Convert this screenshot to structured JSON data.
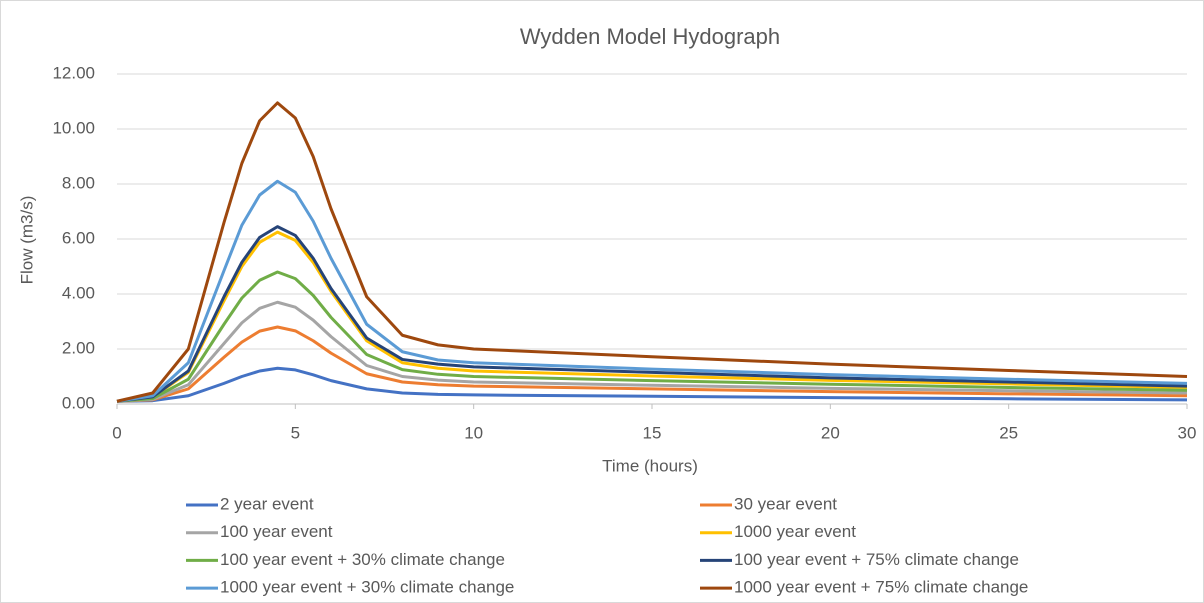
{
  "chart_data": {
    "type": "line",
    "title": "Wydden Model Hydograph",
    "x_label": "Time (hours)",
    "y_label": "Flow (m3/s)",
    "x": [
      0,
      1,
      2,
      3,
      3.5,
      4,
      4.5,
      5,
      5.5,
      6,
      7,
      8,
      9,
      10,
      15,
      20,
      25,
      30
    ],
    "series": [
      {
        "name": "2 year event",
        "color": "#4472c4",
        "values": [
          0.1,
          0.12,
          0.3,
          0.75,
          1.0,
          1.2,
          1.3,
          1.24,
          1.06,
          0.85,
          0.55,
          0.4,
          0.35,
          0.33,
          0.28,
          0.23,
          0.19,
          0.15
        ]
      },
      {
        "name": "30  year event",
        "color": "#ed7d31",
        "values": [
          0.1,
          0.15,
          0.55,
          1.7,
          2.25,
          2.65,
          2.8,
          2.66,
          2.3,
          1.85,
          1.1,
          0.8,
          0.7,
          0.65,
          0.55,
          0.45,
          0.37,
          0.3
        ]
      },
      {
        "name": "100 year event",
        "color": "#a5a5a5",
        "values": [
          0.1,
          0.17,
          0.7,
          2.2,
          2.95,
          3.48,
          3.7,
          3.52,
          3.05,
          2.45,
          1.4,
          1.0,
          0.87,
          0.8,
          0.68,
          0.57,
          0.48,
          0.4
        ]
      },
      {
        "name": "1000 year event",
        "color": "#ffc000",
        "values": [
          0.1,
          0.25,
          1.15,
          3.75,
          5.0,
          5.88,
          6.25,
          5.95,
          5.15,
          4.1,
          2.3,
          1.5,
          1.3,
          1.2,
          1.02,
          0.86,
          0.73,
          0.6
        ]
      },
      {
        "name": "100 year event + 30% climate change",
        "color": "#70ad47",
        "values": [
          0.1,
          0.2,
          0.9,
          2.9,
          3.85,
          4.5,
          4.8,
          4.56,
          3.95,
          3.15,
          1.8,
          1.25,
          1.08,
          1.0,
          0.85,
          0.72,
          0.6,
          0.5
        ]
      },
      {
        "name": "100 year event + 75% climate change",
        "color": "#264478",
        "values": [
          0.1,
          0.26,
          1.2,
          3.9,
          5.15,
          6.06,
          6.45,
          6.13,
          5.3,
          4.2,
          2.4,
          1.62,
          1.45,
          1.35,
          1.15,
          0.95,
          0.8,
          0.65
        ]
      },
      {
        "name": "1000 year event + 30% climate change",
        "color": "#5b9bd5",
        "values": [
          0.1,
          0.3,
          1.5,
          4.85,
          6.5,
          7.6,
          8.1,
          7.7,
          6.65,
          5.3,
          2.9,
          1.9,
          1.6,
          1.5,
          1.27,
          1.07,
          0.9,
          0.75
        ]
      },
      {
        "name": "1000 year event + 75% climate change",
        "color": "#9e480e",
        "values": [
          0.1,
          0.4,
          2.0,
          6.6,
          8.75,
          10.3,
          10.95,
          10.4,
          9.0,
          7.1,
          3.9,
          2.5,
          2.15,
          2.0,
          1.72,
          1.45,
          1.22,
          1.0
        ]
      }
    ],
    "xlim": [
      0,
      30
    ],
    "xticks": [
      0,
      5,
      10,
      15,
      20,
      25,
      30
    ],
    "ylim": [
      0,
      12
    ],
    "yticks": [
      {
        "value": 0,
        "label": "0.00"
      },
      {
        "value": 2,
        "label": "2.00"
      },
      {
        "value": 4,
        "label": "4.00"
      },
      {
        "value": 6,
        "label": "6.00"
      },
      {
        "value": 8,
        "label": "8.00"
      },
      {
        "value": 10,
        "label": "10.00"
      },
      {
        "value": 12,
        "label": "12.00"
      }
    ],
    "grid": true,
    "legend": "bottom"
  }
}
